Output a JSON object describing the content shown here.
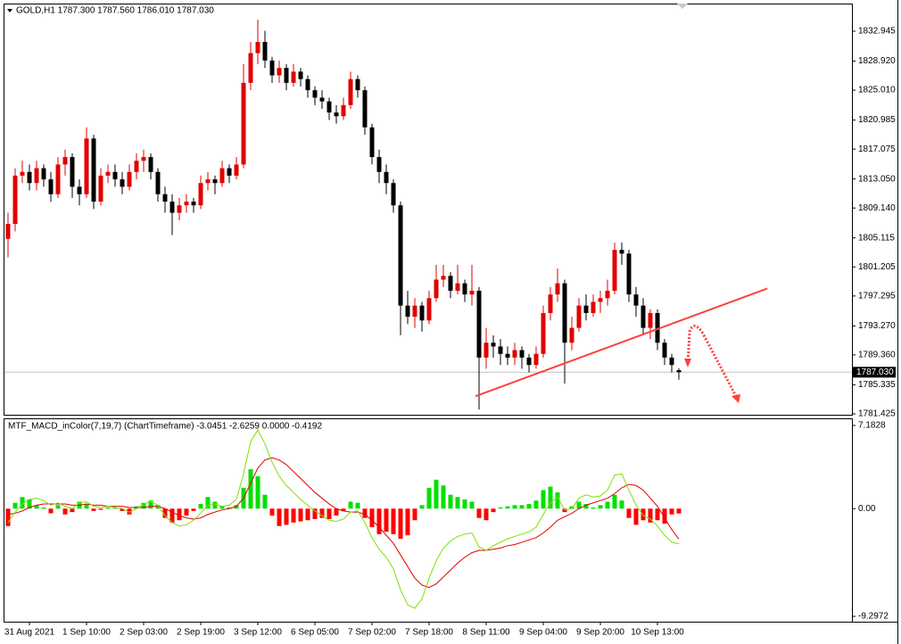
{
  "chart_data": [
    {
      "type": "candlestick",
      "title": "GOLD,H1  1787.300 1787.560 1786.010 1787.030",
      "categories": [
        null,
        null,
        null,
        "31 Aug 2021",
        null,
        null,
        null,
        null,
        null,
        null,
        null,
        "1 Sep 10:00",
        null,
        null,
        null,
        null,
        null,
        null,
        null,
        "2 Sep 03:00",
        null,
        null,
        null,
        null,
        null,
        null,
        null,
        "2 Sep 19:00",
        null,
        null,
        null,
        null,
        null,
        null,
        null,
        "3 Sep 12:00",
        null,
        null,
        null,
        null,
        null,
        null,
        null,
        "6 Sep 05:00",
        null,
        null,
        null,
        null,
        null,
        null,
        null,
        "7 Sep 02:00",
        null,
        null,
        null,
        null,
        null,
        null,
        null,
        "7 Sep 18:00",
        null,
        null,
        null,
        null,
        null,
        null,
        null,
        "8 Sep 11:00",
        null,
        null,
        null,
        null,
        null,
        null,
        null,
        "9 Sep 04:00",
        null,
        null,
        null,
        null,
        null,
        null,
        null,
        "9 Sep 20:00",
        null,
        null,
        null,
        null,
        null,
        null,
        null,
        "10 Sep 13:00",
        null,
        null,
        null
      ],
      "open": [
        1805.0,
        1807.0,
        1813.5,
        1814.0,
        1812.5,
        1814.5,
        1813.0,
        1811.0,
        1815.0,
        1816.0,
        1812.0,
        1811.0,
        1818.5,
        1810.0,
        1813.5,
        1814.0,
        1813.0,
        1812.0,
        1814.0,
        1815.5,
        1816.0,
        1814.0,
        1811.0,
        1810.0,
        1808.5,
        1809.5,
        1810.0,
        1809.5,
        1812.5,
        1813.0,
        1812.5,
        1814.5,
        1813.5,
        1815.0,
        1826.0,
        1830.0,
        1831.5,
        1829.0,
        1827.0,
        1828.0,
        1826.0,
        1827.5,
        1826.5,
        1825.0,
        1824.0,
        1823.5,
        1822.0,
        1821.5,
        1823.0,
        1826.5,
        1825.0,
        1820.0,
        1816.0,
        1814.0,
        1812.5,
        1809.5,
        1796.0,
        1794.5,
        1796.0,
        1794.0,
        1797.0,
        1799.5,
        1800.0,
        1798.0,
        1799.0,
        1797.5,
        1798.0,
        1789.0,
        1791.0,
        1790.5,
        1789.5,
        1789.0,
        1790.0,
        1789.0,
        1788.0,
        1789.5,
        1795.0,
        1797.5,
        1799.0,
        1791.0,
        1793.0,
        1796.0,
        1795.0,
        1796.5,
        1797.0,
        1798.0,
        1803.5,
        1803.0,
        1797.5,
        1796.0,
        1793.0,
        1795.0,
        1791.0,
        1789.0,
        1787.3
      ],
      "high": [
        1808.5,
        1814.5,
        1815.5,
        1815.0,
        1815.5,
        1815.0,
        1814.0,
        1816.0,
        1817.0,
        1816.5,
        1813.0,
        1820.0,
        1819.0,
        1814.5,
        1815.0,
        1815.0,
        1814.0,
        1815.0,
        1816.5,
        1817.0,
        1816.5,
        1814.5,
        1812.0,
        1811.0,
        1810.5,
        1811.0,
        1810.5,
        1813.5,
        1814.0,
        1813.5,
        1815.5,
        1815.0,
        1816.0,
        1828.5,
        1831.5,
        1834.5,
        1833.0,
        1829.5,
        1829.0,
        1828.5,
        1828.5,
        1828.0,
        1827.0,
        1825.5,
        1825.0,
        1824.0,
        1823.0,
        1824.0,
        1827.5,
        1827.0,
        1825.5,
        1820.5,
        1817.0,
        1815.0,
        1813.0,
        1810.0,
        1798.0,
        1797.0,
        1796.5,
        1798.0,
        1801.5,
        1801.5,
        1800.5,
        1801.5,
        1799.5,
        1801.5,
        1798.5,
        1793.0,
        1792.0,
        1791.5,
        1790.5,
        1791.0,
        1790.5,
        1789.5,
        1790.5,
        1796.0,
        1798.5,
        1801.0,
        1799.5,
        1794.5,
        1797.0,
        1797.5,
        1797.5,
        1798.0,
        1799.5,
        1804.5,
        1804.5,
        1803.5,
        1798.5,
        1797.0,
        1795.5,
        1795.5,
        1791.5,
        1789.5,
        1787.56
      ],
      "low": [
        1802.5,
        1806.0,
        1812.5,
        1811.5,
        1811.5,
        1812.0,
        1810.0,
        1810.5,
        1813.5,
        1810.5,
        1809.5,
        1810.5,
        1809.0,
        1809.5,
        1812.5,
        1812.0,
        1811.0,
        1811.5,
        1813.0,
        1814.0,
        1813.0,
        1810.0,
        1808.5,
        1805.5,
        1807.5,
        1808.5,
        1808.5,
        1809.0,
        1811.5,
        1811.0,
        1812.0,
        1812.5,
        1813.0,
        1814.5,
        1825.0,
        1828.5,
        1828.0,
        1826.0,
        1826.0,
        1825.0,
        1825.5,
        1825.5,
        1824.0,
        1823.0,
        1822.5,
        1821.0,
        1820.5,
        1821.0,
        1822.5,
        1824.0,
        1819.0,
        1815.0,
        1812.5,
        1811.0,
        1808.5,
        1792.0,
        1793.5,
        1793.0,
        1792.5,
        1793.5,
        1796.5,
        1798.5,
        1797.0,
        1797.5,
        1796.5,
        1796.0,
        1782.0,
        1787.5,
        1789.0,
        1788.0,
        1788.0,
        1788.0,
        1787.5,
        1787.0,
        1787.5,
        1789.0,
        1794.0,
        1796.5,
        1785.5,
        1790.0,
        1792.5,
        1794.0,
        1794.5,
        1795.0,
        1796.0,
        1797.5,
        1801.5,
        1796.5,
        1794.5,
        1792.0,
        1791.5,
        1790.0,
        1788.0,
        1787.0,
        1786.01
      ],
      "close": [
        1807.0,
        1813.5,
        1814.0,
        1812.5,
        1814.5,
        1813.0,
        1811.0,
        1815.0,
        1816.0,
        1812.0,
        1811.0,
        1818.5,
        1810.0,
        1813.5,
        1814.0,
        1813.0,
        1812.0,
        1814.0,
        1815.5,
        1816.0,
        1814.0,
        1811.0,
        1810.0,
        1808.5,
        1809.5,
        1810.0,
        1809.5,
        1812.5,
        1813.0,
        1812.5,
        1814.5,
        1813.5,
        1815.0,
        1826.0,
        1830.0,
        1831.5,
        1829.0,
        1827.0,
        1828.0,
        1826.0,
        1827.5,
        1826.5,
        1825.0,
        1824.0,
        1823.5,
        1822.0,
        1821.5,
        1823.0,
        1826.5,
        1825.0,
        1820.0,
        1816.0,
        1814.0,
        1812.5,
        1809.5,
        1796.0,
        1794.5,
        1796.0,
        1794.0,
        1797.0,
        1799.5,
        1800.0,
        1798.0,
        1799.0,
        1797.5,
        1798.0,
        1789.0,
        1791.0,
        1790.5,
        1789.5,
        1789.0,
        1790.0,
        1789.0,
        1788.0,
        1789.5,
        1795.0,
        1797.5,
        1799.0,
        1791.0,
        1793.0,
        1796.0,
        1795.0,
        1796.5,
        1797.0,
        1798.0,
        1803.5,
        1803.0,
        1797.5,
        1796.0,
        1793.0,
        1795.0,
        1791.0,
        1789.0,
        1788.0,
        1787.03
      ],
      "up_color": "#e00000",
      "down_color": "#000000",
      "ylim": [
        1781.3,
        1836.55
      ],
      "yticks": [
        1832.945,
        {
          "value": 1828.92,
          "label": "1828.920"
        },
        {
          "value": 1825.01,
          "label": "1825.010"
        },
        1820.985,
        1817.075,
        {
          "value": 1813.05,
          "label": "1813.050"
        },
        {
          "value": 1809.14,
          "label": "1809.140"
        },
        1805.115,
        1801.205,
        1797.295,
        {
          "value": 1793.27,
          "label": "1793.270"
        },
        {
          "value": 1789.36,
          "label": "1789.360"
        },
        1785.335,
        1781.425
      ],
      "current_price": {
        "value": 1787.03,
        "label": "1787.030"
      },
      "trendline": {
        "x": [
          65.5,
          106.4
        ],
        "y": [
          1783.8,
          1798.3
        ],
        "color": "#ff4040"
      }
    },
    {
      "type": "macd",
      "title": "MTF_MACD_inColor(7,19,7) (ChartTimeframe) -3.0451 -2.6259 0.0000 -0.4192",
      "histogram": {
        "up_color": "#00e000",
        "down_color": "#ff0000",
        "values": [
          -1.5,
          0.5,
          1.0,
          0.8,
          0.3,
          0.1,
          -0.4,
          0.3,
          -0.5,
          -0.3,
          0.6,
          0.4,
          -0.2,
          -0.1,
          0.1,
          0.1,
          -0.2,
          -0.5,
          0.2,
          0.5,
          0.7,
          0.3,
          -0.8,
          -1.2,
          -1.0,
          -0.6,
          -0.2,
          0.4,
          1.0,
          0.6,
          0.2,
          0.1,
          0.3,
          1.8,
          3.4,
          2.8,
          1.2,
          -0.6,
          -1.5,
          -1.4,
          -1.2,
          -1.1,
          -1.0,
          -0.9,
          -0.8,
          -0.9,
          -0.6,
          -0.2,
          0.6,
          0.5,
          -0.8,
          -1.6,
          -2.2,
          -2.0,
          -2.2,
          -2.6,
          -2.3,
          -1.0,
          0.3,
          1.8,
          2.5,
          2.0,
          1.2,
          1.0,
          0.8,
          0.6,
          -0.8,
          -1.0,
          -0.3,
          0.1,
          0.2,
          0.3,
          0.3,
          0.4,
          0.7,
          1.6,
          1.9,
          1.4,
          -0.3,
          0.2,
          0.6,
          0.4,
          0.1,
          0.3,
          0.6,
          1.2,
          0.7,
          -0.8,
          -1.4,
          -1.0,
          -1.2,
          -1.0,
          -1.3,
          -0.5,
          -0.4192
        ]
      },
      "macd": {
        "color": "#7fe000",
        "values": [
          -1.2,
          -0.3,
          0.4,
          0.8,
          0.9,
          0.7,
          0.3,
          0.5,
          0.2,
          0.0,
          0.5,
          0.6,
          0.2,
          0.1,
          0.2,
          0.1,
          0.0,
          -0.3,
          0.0,
          0.4,
          0.6,
          0.3,
          -0.6,
          -1.2,
          -1.5,
          -1.4,
          -1.0,
          -0.4,
          0.3,
          0.4,
          0.2,
          0.3,
          0.8,
          3.0,
          5.8,
          6.8,
          5.6,
          4.0,
          2.8,
          2.0,
          1.4,
          0.8,
          0.3,
          -0.2,
          -0.6,
          -1.0,
          -1.1,
          -0.9,
          -0.3,
          -0.2,
          -1.2,
          -2.5,
          -3.5,
          -4.2,
          -5.2,
          -7.0,
          -8.3,
          -8.6,
          -7.8,
          -6.0,
          -4.5,
          -3.4,
          -2.8,
          -2.4,
          -2.2,
          -2.1,
          -3.3,
          -3.6,
          -3.2,
          -2.9,
          -2.6,
          -2.4,
          -2.2,
          -2.0,
          -1.6,
          -0.5,
          0.5,
          1.0,
          -0.1,
          0.0,
          0.9,
          1.2,
          1.0,
          1.1,
          1.6,
          2.9,
          3.0,
          1.6,
          0.3,
          -0.6,
          -0.9,
          -1.5,
          -2.3,
          -2.9,
          -3.0451
        ]
      },
      "signal": {
        "color": "#e00000",
        "values": [
          -0.5,
          -0.4,
          -0.2,
          0.1,
          0.3,
          0.4,
          0.4,
          0.4,
          0.4,
          0.3,
          0.3,
          0.4,
          0.3,
          0.3,
          0.2,
          0.2,
          0.2,
          0.1,
          0.1,
          0.1,
          0.2,
          0.2,
          0.0,
          -0.3,
          -0.6,
          -0.8,
          -0.9,
          -0.8,
          -0.5,
          -0.3,
          -0.1,
          0.0,
          0.2,
          0.9,
          2.2,
          3.5,
          4.2,
          4.4,
          4.2,
          3.8,
          3.2,
          2.6,
          2.0,
          1.4,
          0.9,
          0.4,
          0.0,
          -0.2,
          -0.3,
          -0.3,
          -0.5,
          -1.0,
          -1.6,
          -2.3,
          -3.0,
          -4.0,
          -5.0,
          -6.0,
          -6.6,
          -6.8,
          -6.5,
          -5.9,
          -5.3,
          -4.7,
          -4.2,
          -3.8,
          -3.6,
          -3.6,
          -3.5,
          -3.4,
          -3.2,
          -3.1,
          -2.9,
          -2.7,
          -2.5,
          -2.1,
          -1.6,
          -1.0,
          -0.7,
          -0.4,
          0.0,
          0.3,
          0.5,
          0.7,
          0.9,
          1.3,
          1.8,
          2.1,
          2.0,
          1.6,
          0.9,
          0.2,
          -0.8,
          -1.8,
          -2.6259
        ]
      },
      "ylim": [
        -9.76,
        7.72
      ],
      "yticks": [
        7.1828,
        {
          "value": 0,
          "label": "0.00"
        },
        -9.2972
      ]
    }
  ]
}
